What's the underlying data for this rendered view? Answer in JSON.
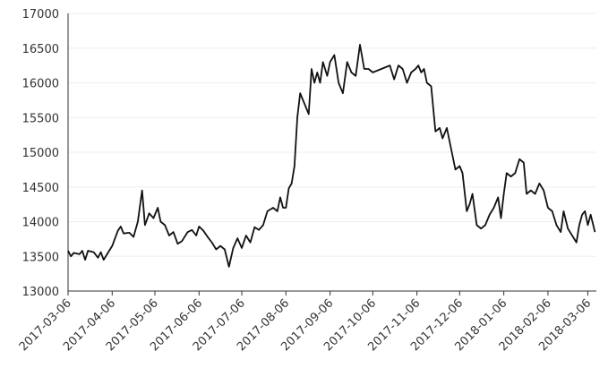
{
  "chart_data": {
    "type": "line",
    "color": "#111111",
    "grid": true,
    "xlim": [
      "2017-03-06",
      "2018-03-12"
    ],
    "ylim": [
      13000,
      17000
    ],
    "yticks": [
      13000,
      13500,
      14000,
      14500,
      15000,
      15500,
      16000,
      16500,
      17000
    ],
    "xticks": [
      "2017-03-06",
      "2017-04-06",
      "2017-05-06",
      "2017-06-06",
      "2017-07-06",
      "2017-08-06",
      "2017-09-06",
      "2017-10-06",
      "2017-11-06",
      "2017-12-06",
      "2018-01-06",
      "2018-02-06",
      "2018-03-06"
    ],
    "x": [
      "2017-03-06",
      "2017-03-08",
      "2017-03-10",
      "2017-03-14",
      "2017-03-16",
      "2017-03-18",
      "2017-03-20",
      "2017-03-24",
      "2017-03-27",
      "2017-03-29",
      "2017-03-31",
      "2017-04-03",
      "2017-04-06",
      "2017-04-10",
      "2017-04-12",
      "2017-04-14",
      "2017-04-18",
      "2017-04-21",
      "2017-04-24",
      "2017-04-27",
      "2017-04-29",
      "2017-05-02",
      "2017-05-05",
      "2017-05-08",
      "2017-05-10",
      "2017-05-13",
      "2017-05-16",
      "2017-05-19",
      "2017-05-22",
      "2017-05-25",
      "2017-05-29",
      "2017-06-01",
      "2017-06-04",
      "2017-06-06",
      "2017-06-09",
      "2017-06-12",
      "2017-06-15",
      "2017-06-18",
      "2017-06-21",
      "2017-06-24",
      "2017-06-27",
      "2017-06-30",
      "2017-07-03",
      "2017-07-06",
      "2017-07-09",
      "2017-07-12",
      "2017-07-15",
      "2017-07-18",
      "2017-07-21",
      "2017-07-24",
      "2017-07-28",
      "2017-07-31",
      "2017-08-02",
      "2017-08-04",
      "2017-08-06",
      "2017-08-08",
      "2017-08-10",
      "2017-08-12",
      "2017-08-14",
      "2017-08-16",
      "2017-08-19",
      "2017-08-22",
      "2017-08-24",
      "2017-08-26",
      "2017-08-28",
      "2017-08-30",
      "2017-09-01",
      "2017-09-04",
      "2017-09-06",
      "2017-09-09",
      "2017-09-12",
      "2017-09-15",
      "2017-09-18",
      "2017-09-21",
      "2017-09-24",
      "2017-09-27",
      "2017-09-30",
      "2017-10-03",
      "2017-10-06",
      "2017-10-12",
      "2017-10-18",
      "2017-10-21",
      "2017-10-24",
      "2017-10-27",
      "2017-10-30",
      "2017-11-02",
      "2017-11-05",
      "2017-11-07",
      "2017-11-09",
      "2017-11-11",
      "2017-11-13",
      "2017-11-16",
      "2017-11-19",
      "2017-11-22",
      "2017-11-24",
      "2017-11-27",
      "2017-11-30",
      "2017-12-03",
      "2017-12-06",
      "2017-12-08",
      "2017-12-11",
      "2017-12-13",
      "2017-12-15",
      "2017-12-18",
      "2017-12-21",
      "2017-12-24",
      "2017-12-27",
      "2017-12-30",
      "2018-01-02",
      "2018-01-04",
      "2018-01-06",
      "2018-01-08",
      "2018-01-11",
      "2018-01-14",
      "2018-01-17",
      "2018-01-20",
      "2018-01-22",
      "2018-01-25",
      "2018-01-28",
      "2018-01-31",
      "2018-02-03",
      "2018-02-06",
      "2018-02-09",
      "2018-02-12",
      "2018-02-15",
      "2018-02-17",
      "2018-02-20",
      "2018-02-23",
      "2018-02-26",
      "2018-02-28",
      "2018-03-02",
      "2018-03-04",
      "2018-03-06",
      "2018-03-08",
      "2018-03-11"
    ],
    "values": [
      13580,
      13500,
      13550,
      13530,
      13580,
      13450,
      13580,
      13560,
      13480,
      13560,
      13450,
      13550,
      13650,
      13870,
      13930,
      13830,
      13840,
      13780,
      14000,
      14450,
      13950,
      14120,
      14050,
      14200,
      14000,
      13950,
      13800,
      13850,
      13680,
      13720,
      13850,
      13880,
      13800,
      13930,
      13870,
      13780,
      13700,
      13600,
      13650,
      13600,
      13350,
      13620,
      13760,
      13620,
      13800,
      13700,
      13920,
      13880,
      13950,
      14150,
      14200,
      14150,
      14350,
      14200,
      14200,
      14480,
      14550,
      14800,
      15500,
      15850,
      15700,
      15550,
      16200,
      16000,
      16150,
      16000,
      16300,
      16100,
      16300,
      16400,
      16000,
      15850,
      16300,
      16150,
      16100,
      16550,
      16200,
      16200,
      16150,
      16200,
      16250,
      16050,
      16250,
      16200,
      16000,
      16150,
      16200,
      16250,
      16150,
      16200,
      16000,
      15950,
      15300,
      15350,
      15200,
      15350,
      15050,
      14750,
      14800,
      14700,
      14150,
      14250,
      14400,
      13950,
      13900,
      13950,
      14100,
      14200,
      14350,
      14050,
      14400,
      14700,
      14650,
      14700,
      14900,
      14850,
      14400,
      14450,
      14400,
      14550,
      14450,
      14200,
      14150,
      13950,
      13850,
      14150,
      13900,
      13800,
      13700,
      13950,
      14100,
      14150,
      13950,
      14100,
      13850
    ]
  }
}
